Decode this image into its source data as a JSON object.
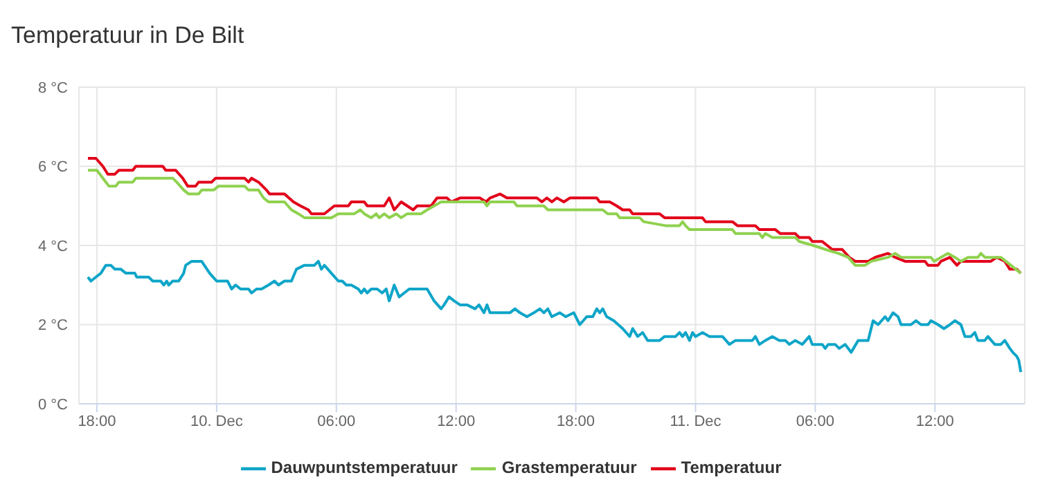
{
  "chart_data": {
    "type": "line",
    "title": "Temperatuur in De Bilt",
    "legend": "bottom",
    "grid": true,
    "marker": "none",
    "line_style": "solid",
    "xlim": [
      "--12-09T17:06",
      "--12-11T16:30"
    ],
    "xticks": [
      {
        "value": "--12-09T18:00",
        "label": "18:00"
      },
      {
        "value": "--12-10T00:00",
        "label": "10. Dec"
      },
      {
        "value": "--12-10T06:00",
        "label": "06:00"
      },
      {
        "value": "--12-10T12:00",
        "label": "12:00"
      },
      {
        "value": "--12-10T18:00",
        "label": "18:00"
      },
      {
        "value": "--12-11T00:00",
        "label": "11. Dec"
      },
      {
        "value": "--12-11T06:00",
        "label": "06:00"
      },
      {
        "value": "--12-11T12:00",
        "label": "12:00"
      }
    ],
    "ylim": [
      0,
      8
    ],
    "yticks": [
      {
        "value": 0,
        "label": "0 °C"
      },
      {
        "value": 2,
        "label": "2 °C"
      },
      {
        "value": 4,
        "label": "4 °C"
      },
      {
        "value": 6,
        "label": "6 °C"
      },
      {
        "value": 8,
        "label": "8 °C"
      }
    ],
    "series": [
      {
        "name": "Temperatuur",
        "color": "#e2001a",
        "x": [
          "--12-09T17:33",
          "--12-09T17:57",
          "--12-09T18:18",
          "--12-09T18:33",
          "--12-09T18:54",
          "--12-09T19:06",
          "--12-09T19:48",
          "--12-09T19:57",
          "--12-09T21:18",
          "--12-09T21:27",
          "--12-09T21:57",
          "--12-09T22:18",
          "--12-09T22:33",
          "--12-09T22:57",
          "--12-09T23:06",
          "--12-09T23:45",
          "--12-09T23:57",
          "--12-10T01:24",
          "--12-10T01:36",
          "--12-10T01:45",
          "--12-10T02:06",
          "--12-10T02:30",
          "--12-10T02:39",
          "--12-10T03:24",
          "--12-10T03:51",
          "--12-10T04:12",
          "--12-10T04:36",
          "--12-10T04:45",
          "--12-10T05:24",
          "--12-10T05:39",
          "--12-10T05:54",
          "--12-10T06:36",
          "--12-10T06:45",
          "--12-10T07:24",
          "--12-10T07:33",
          "--12-10T08:24",
          "--12-10T08:39",
          "--12-10T08:54",
          "--12-10T09:15",
          "--12-10T09:33",
          "--12-10T09:51",
          "--12-10T10:03",
          "--12-10T10:45",
          "--12-10T11:03",
          "--12-10T11:33",
          "--12-10T11:45",
          "--12-10T12:12",
          "--12-10T13:12",
          "--12-10T13:30",
          "--12-10T13:42",
          "--12-10T14:12",
          "--12-10T14:33",
          "--12-10T16:03",
          "--12-10T16:18",
          "--12-10T16:33",
          "--12-10T16:48",
          "--12-10T17:03",
          "--12-10T17:24",
          "--12-10T17:42",
          "--12-10T19:03",
          "--12-10T19:12",
          "--12-10T19:42",
          "--12-10T20:03",
          "--12-10T20:21",
          "--12-10T20:42",
          "--12-10T20:51",
          "--12-10T22:12",
          "--12-10T22:27",
          "--12-11T00:21",
          "--12-11T00:30",
          "--12-11T01:51",
          "--12-11T02:06",
          "--12-11T03:00",
          "--12-11T03:12",
          "--12-11T04:00",
          "--12-11T04:15",
          "--12-11T05:00",
          "--12-11T05:12",
          "--12-11T05:42",
          "--12-11T05:51",
          "--12-11T06:21",
          "--12-11T06:36",
          "--12-11T06:51",
          "--12-11T07:21",
          "--12-11T07:42",
          "--12-11T08:00",
          "--12-11T08:39",
          "--12-11T09:00",
          "--12-11T09:39",
          "--12-11T10:00",
          "--12-11T10:30",
          "--12-11T11:30",
          "--12-11T11:39",
          "--12-11T12:09",
          "--12-11T12:18",
          "--12-11T12:45",
          "--12-11T13:06",
          "--12-11T13:18",
          "--12-11T14:48",
          "--12-11T15:06",
          "--12-11T15:30",
          "--12-11T15:45",
          "--12-11T16:06",
          "--12-11T16:18"
        ],
        "values": [
          6.2,
          6.2,
          6.0,
          5.8,
          5.8,
          5.9,
          5.9,
          6.0,
          6.0,
          5.9,
          5.9,
          5.7,
          5.5,
          5.5,
          5.6,
          5.6,
          5.7,
          5.7,
          5.6,
          5.7,
          5.6,
          5.4,
          5.3,
          5.3,
          5.1,
          5.0,
          4.9,
          4.8,
          4.8,
          4.9,
          5.0,
          5.0,
          5.1,
          5.1,
          5.0,
          5.0,
          5.2,
          4.9,
          5.1,
          5.0,
          4.9,
          5.0,
          5.0,
          5.2,
          5.2,
          5.1,
          5.2,
          5.2,
          5.1,
          5.2,
          5.3,
          5.2,
          5.2,
          5.1,
          5.2,
          5.1,
          5.2,
          5.1,
          5.2,
          5.2,
          5.1,
          5.1,
          5.0,
          4.9,
          4.9,
          4.8,
          4.8,
          4.7,
          4.7,
          4.6,
          4.6,
          4.5,
          4.5,
          4.4,
          4.4,
          4.3,
          4.3,
          4.2,
          4.2,
          4.1,
          4.1,
          4.0,
          3.9,
          3.9,
          3.7,
          3.6,
          3.6,
          3.7,
          3.8,
          3.7,
          3.6,
          3.6,
          3.5,
          3.5,
          3.6,
          3.7,
          3.5,
          3.6,
          3.6,
          3.7,
          3.6,
          3.4,
          3.4,
          3.3
        ]
      },
      {
        "name": "Grastemperatuur",
        "color": "#8fd14f",
        "x": [
          "--12-09T17:33",
          "--12-09T18:00",
          "--12-09T18:18",
          "--12-09T18:36",
          "--12-09T18:57",
          "--12-09T19:06",
          "--12-09T19:48",
          "--12-09T19:57",
          "--12-09T21:48",
          "--12-09T22:00",
          "--12-09T22:21",
          "--12-09T22:36",
          "--12-09T23:06",
          "--12-09T23:15",
          "--12-09T23:51",
          "--12-10T00:06",
          "--12-10T01:24",
          "--12-10T01:36",
          "--12-10T02:06",
          "--12-10T02:21",
          "--12-10T02:36",
          "--12-10T03:24",
          "--12-10T03:45",
          "--12-10T04:06",
          "--12-10T04:24",
          "--12-10T05:45",
          "--12-10T06:06",
          "--12-10T06:54",
          "--12-10T07:12",
          "--12-10T07:24",
          "--12-10T07:45",
          "--12-10T08:00",
          "--12-10T08:09",
          "--12-10T08:24",
          "--12-10T08:39",
          "--12-10T09:00",
          "--12-10T09:15",
          "--12-10T09:33",
          "--12-10T10:15",
          "--12-10T10:33",
          "--12-10T10:54",
          "--12-10T11:15",
          "--12-10T13:24",
          "--12-10T13:33",
          "--12-10T13:42",
          "--12-10T14:54",
          "--12-10T15:03",
          "--12-10T16:24",
          "--12-10T16:36",
          "--12-10T19:21",
          "--12-10T19:36",
          "--12-10T20:03",
          "--12-10T20:12",
          "--12-10T21:12",
          "--12-10T21:24",
          "--12-10T22:30",
          "--12-10T23:12",
          "--12-10T23:21",
          "--12-10T23:30",
          "--12-10T23:42",
          "--12-11T01:51",
          "--12-11T02:00",
          "--12-11T03:12",
          "--12-11T03:21",
          "--12-11T03:30",
          "--12-11T03:51",
          "--12-11T05:00",
          "--12-11T05:12",
          "--12-11T05:54",
          "--12-11T06:30",
          "--12-11T07:09",
          "--12-11T07:39",
          "--12-11T08:00",
          "--12-11T08:30",
          "--12-11T08:48",
          "--12-11T09:39",
          "--12-11T10:00",
          "--12-11T10:18",
          "--12-11T11:48",
          "--12-11T11:57",
          "--12-11T12:18",
          "--12-11T12:39",
          "--12-11T13:00",
          "--12-11T13:18",
          "--12-11T13:39",
          "--12-11T14:09",
          "--12-11T14:18",
          "--12-11T14:30",
          "--12-11T15:18",
          "--12-11T15:48",
          "--12-11T16:18"
        ],
        "values": [
          5.9,
          5.9,
          5.7,
          5.5,
          5.5,
          5.6,
          5.6,
          5.7,
          5.7,
          5.6,
          5.4,
          5.3,
          5.3,
          5.4,
          5.4,
          5.5,
          5.5,
          5.4,
          5.4,
          5.2,
          5.1,
          5.1,
          4.9,
          4.8,
          4.7,
          4.7,
          4.8,
          4.8,
          4.9,
          4.8,
          4.7,
          4.8,
          4.7,
          4.8,
          4.7,
          4.8,
          4.7,
          4.8,
          4.8,
          4.9,
          5.0,
          5.1,
          5.1,
          5.0,
          5.1,
          5.1,
          5.0,
          5.0,
          4.9,
          4.9,
          4.8,
          4.8,
          4.7,
          4.7,
          4.6,
          4.5,
          4.5,
          4.6,
          4.5,
          4.4,
          4.4,
          4.3,
          4.3,
          4.2,
          4.3,
          4.2,
          4.2,
          4.1,
          4.0,
          3.9,
          3.8,
          3.7,
          3.5,
          3.5,
          3.6,
          3.7,
          3.8,
          3.7,
          3.7,
          3.6,
          3.7,
          3.8,
          3.7,
          3.6,
          3.7,
          3.7,
          3.8,
          3.7,
          3.7,
          3.5,
          3.3
        ]
      },
      {
        "name": "Dauwpuntstemperatuur",
        "color": "#0ea5c8",
        "x": [
          "--12-09T17:33",
          "--12-09T17:42",
          "--12-09T17:57",
          "--12-09T18:12",
          "--12-09T18:27",
          "--12-09T18:42",
          "--12-09T18:54",
          "--12-09T19:12",
          "--12-09T19:27",
          "--12-09T19:54",
          "--12-09T20:00",
          "--12-09T20:36",
          "--12-09T20:48",
          "--12-09T21:12",
          "--12-09T21:21",
          "--12-09T21:30",
          "--12-09T21:36",
          "--12-09T21:48",
          "--12-09T22:06",
          "--12-09T22:21",
          "--12-09T22:27",
          "--12-09T22:45",
          "--12-09T23:15",
          "--12-09T23:39",
          "--12-10T00:00",
          "--12-10T00:33",
          "--12-10T00:45",
          "--12-10T00:57",
          "--12-10T01:12",
          "--12-10T01:36",
          "--12-10T01:45",
          "--12-10T02:00",
          "--12-10T02:15",
          "--12-10T02:36",
          "--12-10T02:54",
          "--12-10T03:06",
          "--12-10T03:24",
          "--12-10T03:45",
          "--12-10T04:00",
          "--12-10T04:24",
          "--12-10T04:54",
          "--12-10T05:06",
          "--12-10T05:15",
          "--12-10T05:24",
          "--12-10T05:45",
          "--12-10T06:06",
          "--12-10T06:18",
          "--12-10T06:30",
          "--12-10T06:45",
          "--12-10T07:06",
          "--12-10T07:15",
          "--12-10T07:24",
          "--12-10T07:33",
          "--12-10T07:45",
          "--12-10T08:03",
          "--12-10T08:18",
          "--12-10T08:30",
          "--12-10T08:39",
          "--12-10T08:54",
          "--12-10T09:09",
          "--12-10T09:24",
          "--12-10T09:39",
          "--12-10T10:33",
          "--12-10T10:54",
          "--12-10T11:15",
          "--12-10T11:24",
          "--12-10T11:39",
          "--12-10T11:54",
          "--12-10T12:12",
          "--12-10T12:33",
          "--12-10T12:57",
          "--12-10T13:09",
          "--12-10T13:24",
          "--12-10T13:33",
          "--12-10T13:42",
          "--12-10T14:42",
          "--12-10T14:57",
          "--12-10T15:12",
          "--12-10T15:33",
          "--12-10T15:54",
          "--12-10T16:12",
          "--12-10T16:24",
          "--12-10T16:36",
          "--12-10T16:48",
          "--12-10T17:12",
          "--12-10T17:30",
          "--12-10T17:54",
          "--12-10T18:12",
          "--12-10T18:33",
          "--12-10T18:51",
          "--12-10T19:03",
          "--12-10T19:12",
          "--12-10T19:21",
          "--12-10T19:33",
          "--12-10T19:54",
          "--12-10T20:21",
          "--12-10T20:42",
          "--12-10T20:51",
          "--12-10T21:06",
          "--12-10T21:21",
          "--12-10T21:36",
          "--12-10T22:12",
          "--12-10T22:27",
          "--12-10T23:00",
          "--12-10T23:12",
          "--12-10T23:21",
          "--12-10T23:30",
          "--12-10T23:42",
          "--12-10T23:51",
          "--12-11T00:00",
          "--12-11T00:21",
          "--12-11T00:42",
          "--12-11T01:21",
          "--12-11T01:42",
          "--12-11T02:00",
          "--12-11T02:51",
          "--12-11T03:00",
          "--12-11T03:12",
          "--12-11T03:30",
          "--12-11T03:51",
          "--12-11T04:12",
          "--12-11T04:30",
          "--12-11T04:42",
          "--12-11T05:00",
          "--12-11T05:21",
          "--12-11T05:42",
          "--12-11T05:51",
          "--12-11T06:21",
          "--12-11T06:30",
          "--12-11T06:39",
          "--12-11T07:00",
          "--12-11T07:12",
          "--12-11T07:30",
          "--12-11T07:48",
          "--12-11T08:09",
          "--12-11T08:39",
          "--12-11T08:54",
          "--12-11T09:09",
          "--12-11T09:30",
          "--12-11T09:39",
          "--12-11T09:54",
          "--12-11T10:09",
          "--12-11T10:18",
          "--12-11T10:48",
          "--12-11T11:03",
          "--12-11T11:18",
          "--12-11T11:39",
          "--12-11T11:48",
          "--12-11T12:09",
          "--12-11T12:27",
          "--12-11T12:45",
          "--12-11T13:00",
          "--12-11T13:18",
          "--12-11T13:30",
          "--12-11T13:48",
          "--12-11T14:00",
          "--12-11T14:09",
          "--12-11T14:30",
          "--12-11T14:39",
          "--12-11T15:00",
          "--12-11T15:18",
          "--12-11T15:30",
          "--12-11T15:45",
          "--12-11T15:54",
          "--12-11T16:06",
          "--12-11T16:12",
          "--12-11T16:18"
        ],
        "values": [
          3.2,
          3.1,
          3.2,
          3.3,
          3.5,
          3.5,
          3.4,
          3.4,
          3.3,
          3.3,
          3.2,
          3.2,
          3.1,
          3.1,
          3.0,
          3.1,
          3.0,
          3.1,
          3.1,
          3.3,
          3.5,
          3.6,
          3.6,
          3.3,
          3.1,
          3.1,
          2.9,
          3.0,
          2.9,
          2.9,
          2.8,
          2.9,
          2.9,
          3.0,
          3.1,
          3.0,
          3.1,
          3.1,
          3.4,
          3.5,
          3.5,
          3.6,
          3.4,
          3.5,
          3.3,
          3.1,
          3.1,
          3.0,
          3.0,
          2.9,
          2.8,
          2.9,
          2.8,
          2.9,
          2.9,
          2.8,
          2.9,
          2.6,
          3.0,
          2.7,
          2.8,
          2.9,
          2.9,
          2.6,
          2.4,
          2.5,
          2.7,
          2.6,
          2.5,
          2.5,
          2.4,
          2.5,
          2.3,
          2.5,
          2.3,
          2.3,
          2.4,
          2.3,
          2.2,
          2.3,
          2.4,
          2.3,
          2.4,
          2.2,
          2.3,
          2.2,
          2.3,
          2.0,
          2.2,
          2.2,
          2.4,
          2.3,
          2.4,
          2.2,
          2.1,
          1.9,
          1.7,
          1.9,
          1.7,
          1.8,
          1.6,
          1.6,
          1.7,
          1.7,
          1.8,
          1.7,
          1.8,
          1.6,
          1.8,
          1.7,
          1.8,
          1.7,
          1.7,
          1.5,
          1.6,
          1.6,
          1.7,
          1.5,
          1.6,
          1.7,
          1.6,
          1.6,
          1.5,
          1.6,
          1.5,
          1.7,
          1.5,
          1.5,
          1.4,
          1.5,
          1.5,
          1.4,
          1.5,
          1.3,
          1.6,
          1.6,
          2.1,
          2.0,
          2.2,
          2.1,
          2.3,
          2.2,
          2.0,
          2.0,
          2.1,
          2.0,
          2.0,
          2.1,
          2.0,
          1.9,
          2.0,
          2.1,
          2.0,
          1.7,
          1.7,
          1.8,
          1.6,
          1.6,
          1.7,
          1.5,
          1.5,
          1.6,
          1.4,
          1.3,
          1.2,
          1.1,
          0.8
        ]
      }
    ]
  }
}
